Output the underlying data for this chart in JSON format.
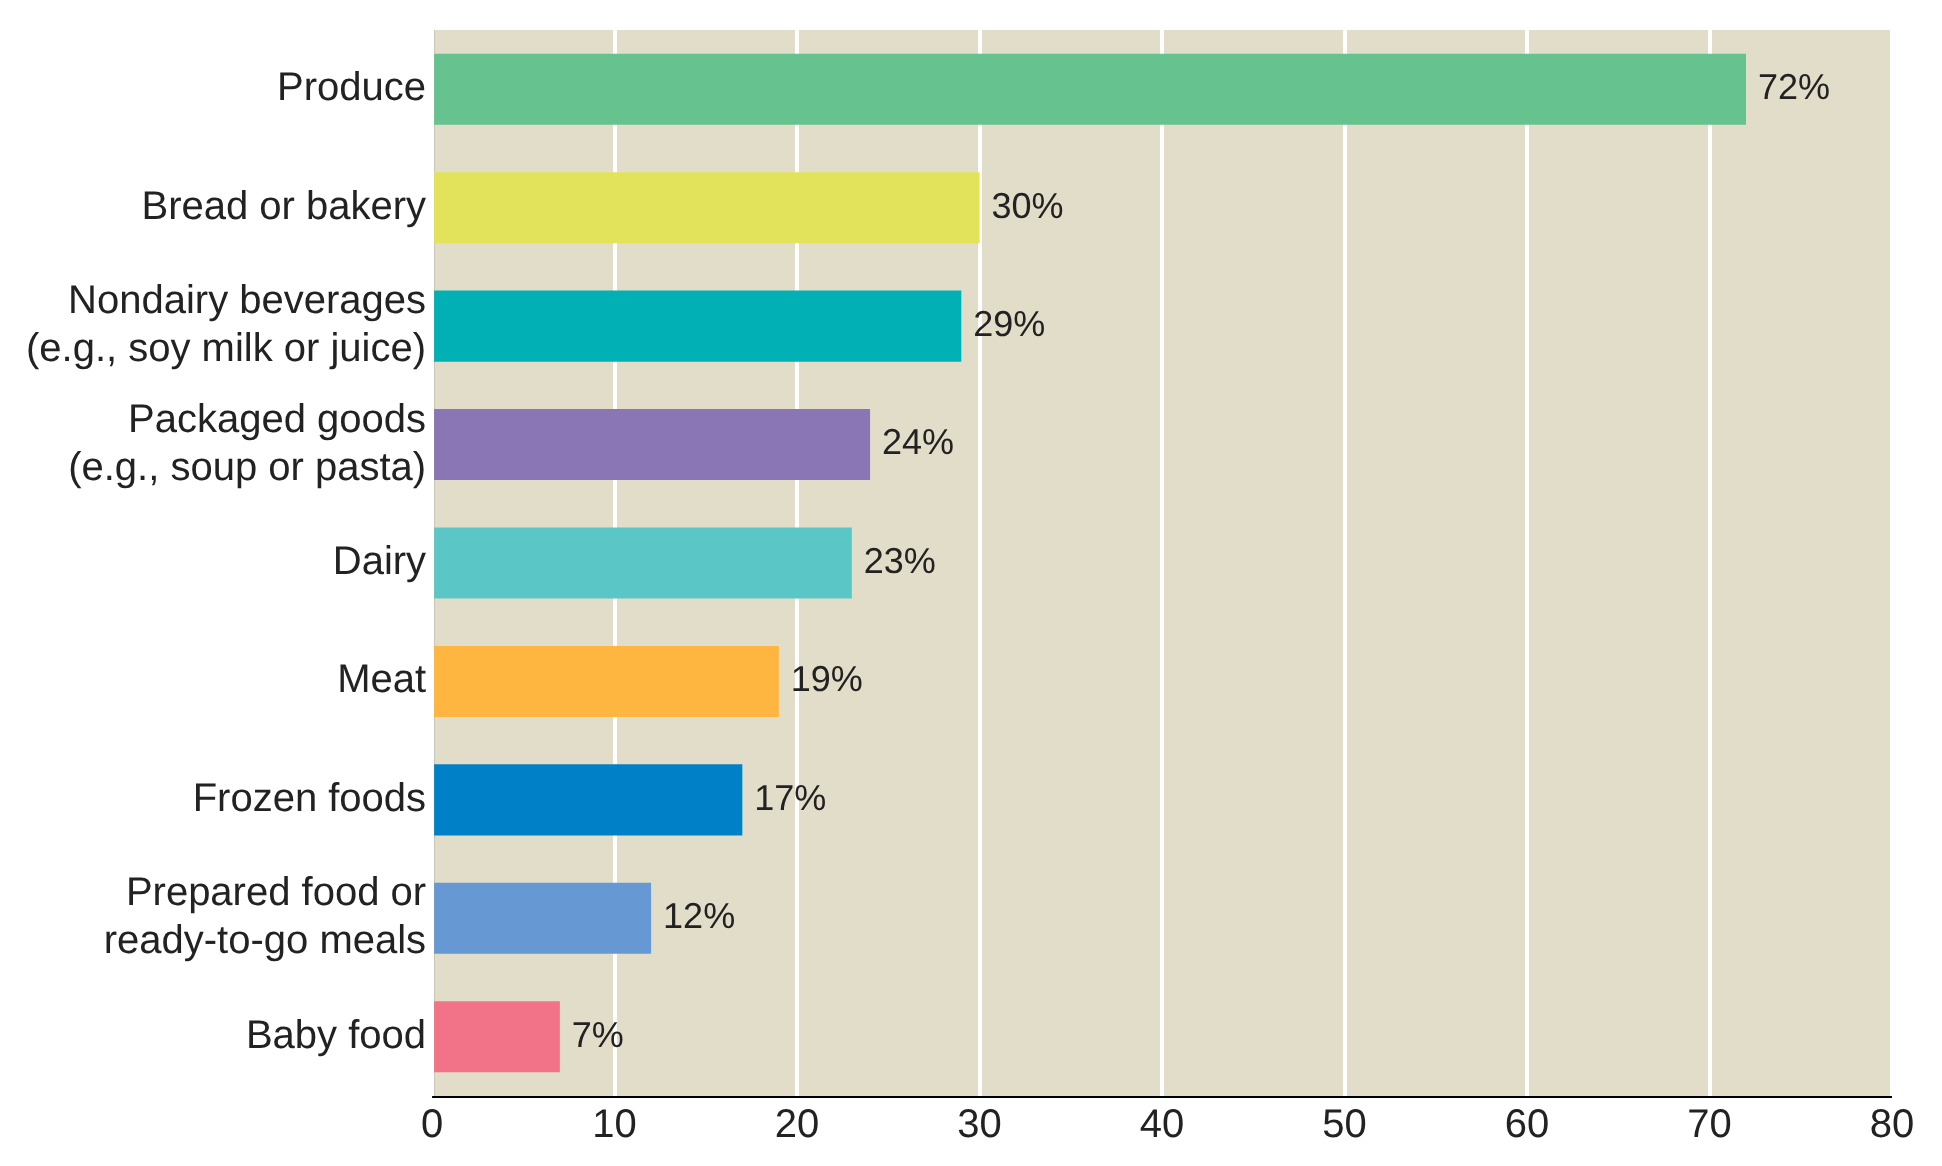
{
  "chart_data": {
    "type": "bar",
    "orientation": "horizontal",
    "categories": [
      "Produce",
      "Bread or bakery",
      "Nondairy beverages\n(e.g., soy milk or juice)",
      "Packaged goods\n(e.g., soup or pasta)",
      "Dairy",
      "Meat",
      "Frozen foods",
      "Prepared food or\nready-to-go meals",
      "Baby food"
    ],
    "values": [
      72,
      30,
      29,
      24,
      23,
      19,
      17,
      12,
      7
    ],
    "colors": [
      "#66c28f",
      "#e2e35a",
      "#00b0b4",
      "#8a75b5",
      "#5ac6c6",
      "#ffb640",
      "#0080c6",
      "#6699d3",
      "#f27287"
    ],
    "value_labels": [
      "72%",
      "30%",
      "29%",
      "24%",
      "23%",
      "19%",
      "17%",
      "12%",
      "7%"
    ],
    "xlim": [
      0,
      80
    ],
    "xticks": [
      0,
      10,
      20,
      30,
      40,
      50,
      60,
      70,
      80
    ],
    "grid": "x",
    "legend": false
  }
}
